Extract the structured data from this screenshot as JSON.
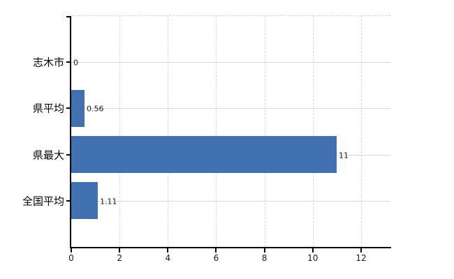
{
  "chart_data": {
    "type": "bar",
    "orientation": "horizontal",
    "title": "",
    "xlabel": "",
    "ylabel": "",
    "categories": [
      "志木市",
      "県平均",
      "県最大",
      "全国平均"
    ],
    "values": [
      0,
      0.56,
      11,
      1.11
    ],
    "value_labels": [
      "0",
      "0.56",
      "11",
      "1.11"
    ],
    "x_ticks": [
      0,
      2,
      4,
      6,
      8,
      10,
      12
    ],
    "x_tick_labels": [
      "0",
      "2",
      "4",
      "6",
      "8",
      "10",
      "12"
    ],
    "xlim": [
      0,
      13.25
    ],
    "grid": true,
    "legend": false,
    "gridline_style": "solid horizontal at category centers, dashed vertical at x ticks, dashed top plot border",
    "bar_color": "#4070b0",
    "gridline_solid_color": "#d3dbd3",
    "gridline_dashed_color": "#d9d2d9",
    "axis_color": "#000000",
    "label_color": "#000000",
    "background_color": "#ffffff"
  }
}
